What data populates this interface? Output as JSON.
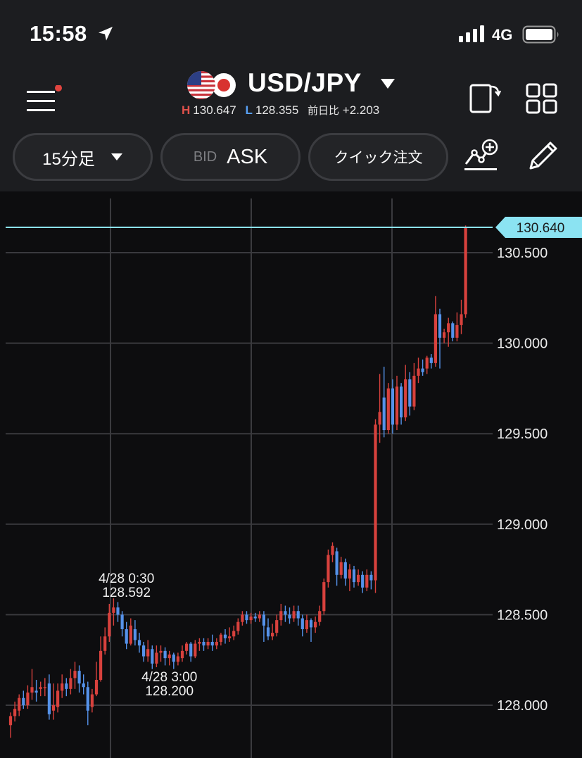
{
  "status_bar": {
    "time": "15:58",
    "network": "4G",
    "icons": [
      "location-arrow-icon",
      "signal-bars-icon",
      "battery-icon"
    ]
  },
  "header": {
    "pair": "USD/JPY",
    "flags": [
      "us-flag-icon",
      "japan-flag-icon"
    ],
    "high_label": "H",
    "high_value": "130.647",
    "low_label": "L",
    "low_value": "128.355",
    "change_label": "前日比",
    "change_value": "+2.203",
    "menu_has_notification": true,
    "notification_color": "#e0443f"
  },
  "toolbar": {
    "timeframe": "15分足",
    "bid_label": "BID",
    "ask_label": "ASK",
    "quick_order_label": "クイック注文",
    "icons": [
      "hamburger-menu-icon",
      "rotate-screen-icon",
      "grid-layout-icon",
      "add-indicator-icon",
      "pencil-icon"
    ]
  },
  "colors": {
    "up": "#d8413d",
    "down": "#5592ea",
    "current_price_line": "#8be3f2",
    "background": "#0d0d0f",
    "panel": "#1c1d20"
  },
  "chart_data": {
    "type": "candlestick",
    "symbol": "USD/JPY",
    "timeframe": "15分足",
    "price_side": "ASK",
    "y_ticks": [
      "130.500",
      "130.000",
      "129.500",
      "129.000",
      "128.500",
      "128.000"
    ],
    "ylim": [
      127.8,
      130.75
    ],
    "current_price": "130.640",
    "grid": true,
    "annotations": [
      {
        "label_time": "4/28 0:30",
        "label_price": "128.592",
        "index": 27,
        "type": "high"
      },
      {
        "label_time": "4/28 3:00",
        "label_price": "128.200",
        "index": 37,
        "type": "low"
      }
    ],
    "candles": [
      [
        127.89,
        127.94,
        127.82,
        127.96
      ],
      [
        127.94,
        127.98,
        127.91,
        128.02
      ],
      [
        127.97,
        128.04,
        127.94,
        128.06
      ],
      [
        128.04,
        128.0,
        127.98,
        128.08
      ],
      [
        128.0,
        128.07,
        127.98,
        128.11
      ],
      [
        128.07,
        128.1,
        128.03,
        128.2
      ],
      [
        128.08,
        128.07,
        128.02,
        128.14
      ],
      [
        128.09,
        128.1,
        128.05,
        128.13
      ],
      [
        128.1,
        128.1,
        128.05,
        128.15
      ],
      [
        128.12,
        127.95,
        127.92,
        128.17
      ],
      [
        127.97,
        128.0,
        127.92,
        128.12
      ],
      [
        127.99,
        128.08,
        127.96,
        128.12
      ],
      [
        128.08,
        128.12,
        128.04,
        128.17
      ],
      [
        128.12,
        128.09,
        128.05,
        128.15
      ],
      [
        128.09,
        128.15,
        128.06,
        128.2
      ],
      [
        128.15,
        128.19,
        128.09,
        128.24
      ],
      [
        128.19,
        128.12,
        128.07,
        128.22
      ],
      [
        128.12,
        128.1,
        128.06,
        128.17
      ],
      [
        128.1,
        127.97,
        127.89,
        128.13
      ],
      [
        127.99,
        128.06,
        127.96,
        128.09
      ],
      [
        128.06,
        128.14,
        128.05,
        128.24
      ],
      [
        128.14,
        128.3,
        128.13,
        128.38
      ],
      [
        128.3,
        128.38,
        128.28,
        128.43
      ],
      [
        128.38,
        128.51,
        128.35,
        128.56
      ],
      [
        128.51,
        128.54,
        128.44,
        128.59
      ],
      [
        128.54,
        128.5,
        128.46,
        128.57
      ],
      [
        128.5,
        128.42,
        128.38,
        128.52
      ],
      [
        128.42,
        128.34,
        128.31,
        128.46
      ],
      [
        128.34,
        128.44,
        128.33,
        128.48
      ],
      [
        128.42,
        128.36,
        128.33,
        128.47
      ],
      [
        128.36,
        128.33,
        128.29,
        128.4
      ],
      [
        128.33,
        128.27,
        128.24,
        128.35
      ],
      [
        128.27,
        128.31,
        128.24,
        128.36
      ],
      [
        128.31,
        128.23,
        128.2,
        128.33
      ],
      [
        128.23,
        128.29,
        128.21,
        128.33
      ],
      [
        128.29,
        128.3,
        128.24,
        128.33
      ],
      [
        128.3,
        128.26,
        128.22,
        128.32
      ],
      [
        128.26,
        128.28,
        128.22,
        128.3
      ],
      [
        128.28,
        128.24,
        128.2,
        128.29
      ],
      [
        128.24,
        128.27,
        128.22,
        128.29
      ],
      [
        128.26,
        128.3,
        128.24,
        128.33
      ],
      [
        128.3,
        128.34,
        128.28,
        128.35
      ],
      [
        128.34,
        128.27,
        128.24,
        128.35
      ],
      [
        128.27,
        128.34,
        128.26,
        128.36
      ],
      [
        128.34,
        128.35,
        128.3,
        128.37
      ],
      [
        128.35,
        128.33,
        128.3,
        128.37
      ],
      [
        128.33,
        128.35,
        128.31,
        128.37
      ],
      [
        128.35,
        128.33,
        128.3,
        128.39
      ],
      [
        128.33,
        128.35,
        128.31,
        128.37
      ],
      [
        128.35,
        128.39,
        128.33,
        128.4
      ],
      [
        128.39,
        128.37,
        128.34,
        128.42
      ],
      [
        128.37,
        128.38,
        128.35,
        128.43
      ],
      [
        128.38,
        128.41,
        128.36,
        128.44
      ],
      [
        128.41,
        128.46,
        128.39,
        128.48
      ],
      [
        128.46,
        128.5,
        128.44,
        128.52
      ],
      [
        128.5,
        128.47,
        128.45,
        128.52
      ],
      [
        128.47,
        128.49,
        128.45,
        128.51
      ],
      [
        128.49,
        128.48,
        128.46,
        128.51
      ],
      [
        128.48,
        128.5,
        128.46,
        128.52
      ],
      [
        128.5,
        128.44,
        128.35,
        128.52
      ],
      [
        128.43,
        128.38,
        128.36,
        128.48
      ],
      [
        128.38,
        128.4,
        128.36,
        128.45
      ],
      [
        128.4,
        128.47,
        128.38,
        128.5
      ],
      [
        128.47,
        128.52,
        128.44,
        128.56
      ],
      [
        128.52,
        128.5,
        128.46,
        128.55
      ],
      [
        128.5,
        128.48,
        128.45,
        128.54
      ],
      [
        128.48,
        128.52,
        128.46,
        128.55
      ],
      [
        128.52,
        128.48,
        128.44,
        128.55
      ],
      [
        128.48,
        128.42,
        128.38,
        128.5
      ],
      [
        128.42,
        128.47,
        128.4,
        128.5
      ],
      [
        128.47,
        128.43,
        128.35,
        128.48
      ],
      [
        128.43,
        128.46,
        128.4,
        128.49
      ],
      [
        128.46,
        128.52,
        128.44,
        128.55
      ],
      [
        128.52,
        128.68,
        128.5,
        128.7
      ],
      [
        128.68,
        128.83,
        128.65,
        128.86
      ],
      [
        128.83,
        128.88,
        128.79,
        128.9
      ],
      [
        128.85,
        128.72,
        128.66,
        128.87
      ],
      [
        128.72,
        128.79,
        128.7,
        128.82
      ],
      [
        128.79,
        128.7,
        128.66,
        128.81
      ],
      [
        128.7,
        128.75,
        128.63,
        128.78
      ],
      [
        128.75,
        128.68,
        128.65,
        128.77
      ],
      [
        128.68,
        128.72,
        128.66,
        128.75
      ],
      [
        128.72,
        128.65,
        128.62,
        128.74
      ],
      [
        128.65,
        128.72,
        128.63,
        128.75
      ],
      [
        128.72,
        128.69,
        128.64,
        128.74
      ],
      [
        128.69,
        129.55,
        128.62,
        129.58
      ],
      [
        129.55,
        129.62,
        129.45,
        129.83
      ],
      [
        129.7,
        129.52,
        129.48,
        129.87
      ],
      [
        129.52,
        129.75,
        129.5,
        129.78
      ],
      [
        129.75,
        129.55,
        129.5,
        129.8
      ],
      [
        129.55,
        129.76,
        129.52,
        129.82
      ],
      [
        129.76,
        129.59,
        129.55,
        129.78
      ],
      [
        129.59,
        129.8,
        129.57,
        129.88
      ],
      [
        129.8,
        129.65,
        129.6,
        129.84
      ],
      [
        129.65,
        129.82,
        129.63,
        129.89
      ],
      [
        129.82,
        129.86,
        129.78,
        129.92
      ],
      [
        129.86,
        129.84,
        129.82,
        129.91
      ],
      [
        129.86,
        129.92,
        129.83,
        129.93
      ],
      [
        129.92,
        129.89,
        129.86,
        129.94
      ],
      [
        129.89,
        130.16,
        129.87,
        130.26
      ],
      [
        130.16,
        130.03,
        129.86,
        130.19
      ],
      [
        130.03,
        130.06,
        130.0,
        130.08
      ],
      [
        130.06,
        130.11,
        129.98,
        130.14
      ],
      [
        130.11,
        130.03,
        130.01,
        130.12
      ],
      [
        130.03,
        130.1,
        130.01,
        130.17
      ],
      [
        130.1,
        130.16,
        130.05,
        130.24
      ],
      [
        130.16,
        130.64,
        130.14,
        130.65
      ]
    ]
  }
}
